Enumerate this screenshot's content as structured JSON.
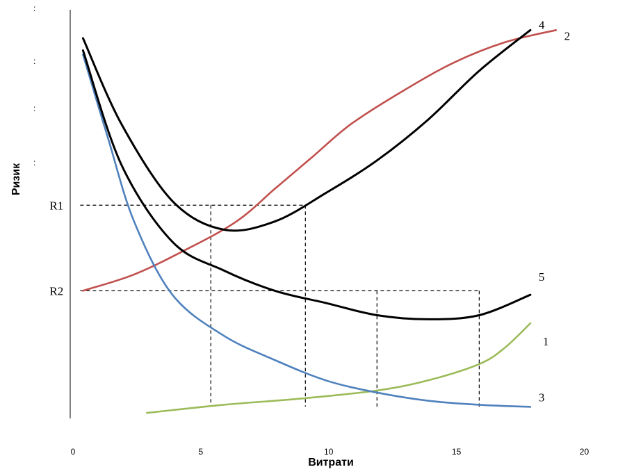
{
  "chart_data": {
    "type": "line",
    "xlabel": "Витрати",
    "ylabel": "Ризик",
    "xlim": [
      0,
      22
    ],
    "ylim": [
      0,
      100
    ],
    "grid": false,
    "legend": "none",
    "series": [
      {
        "label": "1",
        "color": "#9bbb59",
        "x": [
          3,
          6,
          9,
          12,
          14,
          16,
          17,
          18
        ],
        "y": [
          1,
          3,
          4.5,
          6.5,
          9,
          13,
          17,
          23
        ]
      },
      {
        "label": "2",
        "color": "#c0504d",
        "x": [
          0.5,
          2.5,
          4.5,
          6.5,
          8,
          9.5,
          11,
          13,
          15,
          17,
          19
        ],
        "y": [
          31,
          35,
          41,
          48,
          56,
          64,
          72,
          80,
          87,
          92,
          95
        ]
      },
      {
        "label": "3",
        "color": "#4f81bd",
        "x": [
          0.5,
          1.5,
          2.5,
          4,
          6,
          8,
          10,
          12,
          14,
          16,
          18
        ],
        "y": [
          89,
          68,
          48,
          30,
          20,
          14,
          9,
          6,
          4,
          3,
          2.5
        ]
      },
      {
        "label": "4",
        "color": "#000000",
        "x": [
          0.5,
          2,
          4,
          6,
          8,
          10,
          12,
          14,
          16,
          18
        ],
        "y": [
          93,
          72,
          53,
          46,
          48,
          55,
          63,
          73,
          85,
          95
        ]
      },
      {
        "label": "5",
        "color": "#000000",
        "x": [
          0.5,
          2,
          4,
          6,
          8,
          10,
          12,
          14,
          16,
          18
        ],
        "y": [
          90,
          62,
          43,
          36,
          31,
          28,
          25,
          24,
          25,
          30
        ]
      }
    ],
    "reference_lines": {
      "R1": {
        "y": 52,
        "x_drops": [
          5.5,
          9.2
        ]
      },
      "R2": {
        "y": 31,
        "x_drops": [
          12.0,
          16.0
        ]
      }
    },
    "y_tick_labels": [
      "R1",
      "R2"
    ],
    "x_tick_labels": [
      "0",
      "5",
      "10",
      "15",
      "20"
    ]
  }
}
